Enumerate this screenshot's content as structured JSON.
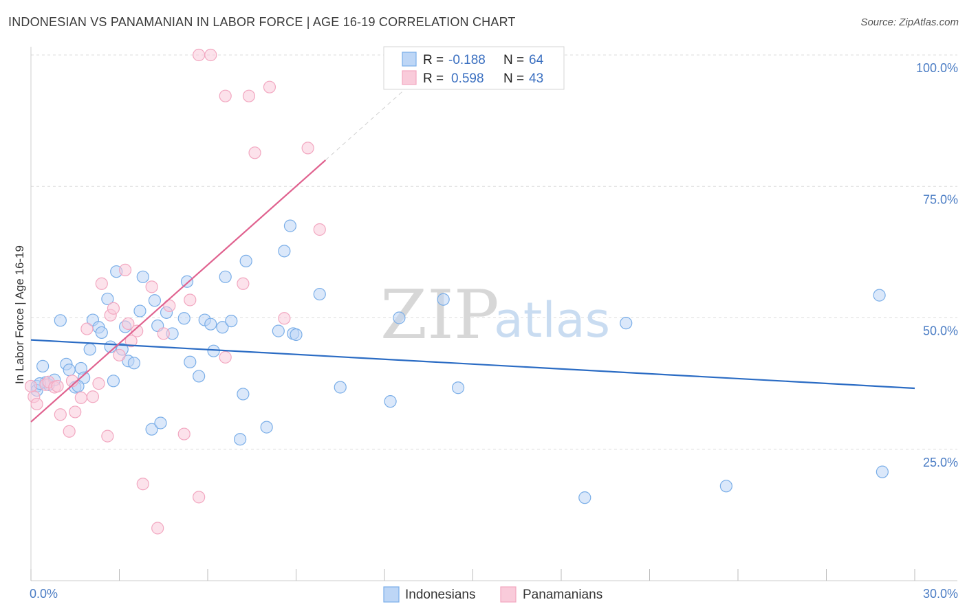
{
  "header": {
    "title": "INDONESIAN VS PANAMANIAN IN LABOR FORCE | AGE 16-19 CORRELATION CHART",
    "source": "Source: ZipAtlas.com"
  },
  "watermark": {
    "zip": "ZIP",
    "atlas": "atlas"
  },
  "legend": {
    "r_label": "R =",
    "n_label": "N =",
    "entries": [
      {
        "r": "-0.188",
        "n": "64"
      },
      {
        "r": "0.598",
        "n": "43"
      }
    ]
  },
  "bottom_legend": [
    "Indonesians",
    "Panamanians"
  ],
  "chart_data": {
    "type": "scatter",
    "title": "INDONESIAN VS PANAMANIAN IN LABOR FORCE | AGE 16-19 CORRELATION CHART",
    "xlabel": "",
    "ylabel": "In Labor Force | Age 16-19",
    "xlim": [
      0,
      30
    ],
    "ylim": [
      0,
      102
    ],
    "y_ticks": [
      {
        "value": 25,
        "label": "25.0%"
      },
      {
        "value": 50,
        "label": "50.0%"
      },
      {
        "value": 75,
        "label": "75.0%"
      },
      {
        "value": 100,
        "label": "100.0%"
      }
    ],
    "x_ticks": [
      {
        "value": 0,
        "label": "0.0%"
      },
      {
        "value": 30,
        "label": "30.0%"
      }
    ],
    "grid": true,
    "series": [
      {
        "name": "Indonesians",
        "color": "#7aaee8",
        "fill": "#bdd6f6",
        "trend": {
          "x0": 0,
          "y0": 45.8,
          "x1": 30,
          "y1": 36.6,
          "color": "#2b6cc4"
        },
        "points": [
          [
            0.2,
            37.0
          ],
          [
            0.4,
            40.8
          ],
          [
            0.5,
            37.7
          ],
          [
            0.6,
            37.3
          ],
          [
            0.8,
            38.2
          ],
          [
            1.0,
            49.5
          ],
          [
            1.2,
            41.2
          ],
          [
            1.3,
            40.1
          ],
          [
            1.5,
            36.8
          ],
          [
            1.7,
            40.4
          ],
          [
            1.8,
            38.6
          ],
          [
            2.0,
            44.0
          ],
          [
            2.1,
            49.6
          ],
          [
            2.3,
            48.2
          ],
          [
            2.4,
            47.2
          ],
          [
            2.6,
            53.6
          ],
          [
            2.7,
            44.5
          ],
          [
            2.8,
            38.0
          ],
          [
            2.9,
            58.8
          ],
          [
            3.1,
            44.0
          ],
          [
            3.2,
            48.3
          ],
          [
            3.3,
            41.8
          ],
          [
            3.5,
            41.4
          ],
          [
            3.7,
            51.3
          ],
          [
            3.8,
            57.8
          ],
          [
            4.1,
            28.8
          ],
          [
            4.2,
            53.3
          ],
          [
            4.3,
            48.5
          ],
          [
            4.4,
            30.0
          ],
          [
            4.6,
            51.0
          ],
          [
            4.8,
            47.0
          ],
          [
            5.2,
            49.9
          ],
          [
            5.3,
            56.9
          ],
          [
            5.4,
            41.6
          ],
          [
            5.7,
            38.9
          ],
          [
            5.9,
            49.6
          ],
          [
            6.1,
            48.8
          ],
          [
            6.2,
            43.7
          ],
          [
            6.5,
            48.2
          ],
          [
            6.6,
            57.8
          ],
          [
            6.8,
            49.4
          ],
          [
            7.1,
            26.9
          ],
          [
            7.2,
            35.5
          ],
          [
            7.3,
            60.8
          ],
          [
            8.0,
            29.2
          ],
          [
            8.4,
            47.5
          ],
          [
            8.6,
            62.7
          ],
          [
            8.8,
            67.5
          ],
          [
            8.9,
            47.0
          ],
          [
            9.0,
            46.8
          ],
          [
            9.8,
            54.5
          ],
          [
            10.5,
            36.8
          ],
          [
            12.2,
            34.1
          ],
          [
            12.5,
            50.0
          ],
          [
            14.0,
            53.5
          ],
          [
            14.5,
            36.7
          ],
          [
            18.8,
            15.8
          ],
          [
            20.2,
            49.0
          ],
          [
            23.6,
            18.0
          ],
          [
            28.8,
            54.3
          ],
          [
            28.9,
            20.7
          ],
          [
            0.2,
            36.2
          ],
          [
            0.3,
            37.5
          ],
          [
            1.6,
            37.0
          ]
        ]
      },
      {
        "name": "Panamanians",
        "color": "#f2a7c0",
        "fill": "#f9cbda",
        "trend": {
          "x0": 0,
          "y0": 30.2,
          "x1": 10.0,
          "y1": 80.0,
          "color": "#e0628f",
          "dash_to": {
            "x": 13.0,
            "y": 95.0
          }
        },
        "points": [
          [
            0.1,
            35.0
          ],
          [
            0.2,
            33.6
          ],
          [
            0.5,
            37.3
          ],
          [
            0.6,
            37.8
          ],
          [
            0.8,
            36.8
          ],
          [
            1.0,
            31.6
          ],
          [
            1.3,
            28.4
          ],
          [
            1.5,
            32.1
          ],
          [
            1.7,
            34.8
          ],
          [
            1.9,
            47.9
          ],
          [
            2.1,
            35.0
          ],
          [
            2.3,
            37.5
          ],
          [
            2.4,
            56.5
          ],
          [
            2.6,
            27.5
          ],
          [
            2.7,
            50.5
          ],
          [
            2.8,
            51.8
          ],
          [
            3.0,
            42.9
          ],
          [
            3.2,
            59.1
          ],
          [
            3.3,
            48.9
          ],
          [
            3.4,
            45.6
          ],
          [
            3.6,
            47.5
          ],
          [
            3.8,
            18.4
          ],
          [
            4.1,
            55.9
          ],
          [
            4.3,
            10.0
          ],
          [
            4.5,
            47.0
          ],
          [
            4.7,
            52.3
          ],
          [
            5.2,
            27.9
          ],
          [
            5.4,
            53.4
          ],
          [
            5.7,
            15.9
          ],
          [
            5.7,
            100.0
          ],
          [
            6.1,
            100.0
          ],
          [
            6.6,
            92.2
          ],
          [
            6.6,
            42.5
          ],
          [
            7.2,
            56.5
          ],
          [
            7.4,
            92.2
          ],
          [
            7.6,
            81.4
          ],
          [
            8.1,
            93.9
          ],
          [
            8.6,
            49.9
          ],
          [
            9.4,
            82.3
          ],
          [
            9.8,
            66.8
          ],
          [
            0.0,
            37.0
          ],
          [
            1.4,
            38.0
          ],
          [
            0.9,
            37.0
          ]
        ]
      }
    ]
  }
}
